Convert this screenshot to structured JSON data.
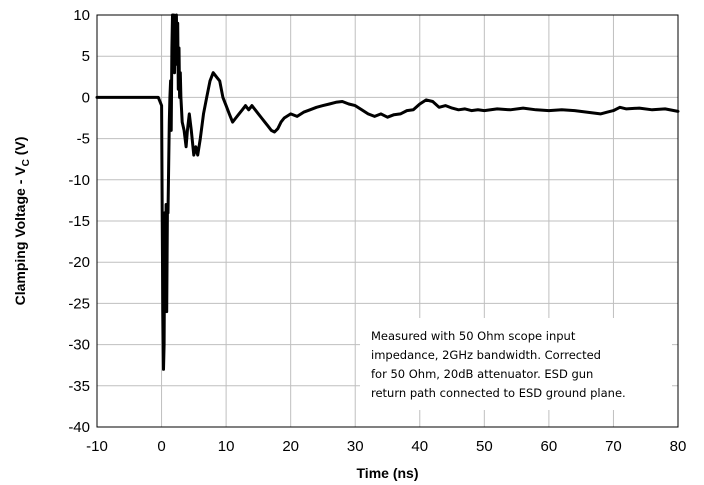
{
  "chart_data": {
    "type": "line",
    "xlabel": "Time (ns)",
    "ylabel_main": "Clamping Voltage - V",
    "ylabel_sub": "C",
    "ylabel_unit": " (V)",
    "xlim": [
      -10,
      80
    ],
    "ylim": [
      -40,
      10
    ],
    "xticks": [
      -10,
      0,
      10,
      20,
      30,
      40,
      50,
      60,
      70,
      80
    ],
    "yticks": [
      10,
      5,
      0,
      -5,
      -10,
      -15,
      -20,
      -25,
      -30,
      -35,
      -40
    ],
    "grid": true,
    "line_color": "#000000",
    "annotation": [
      "Measured with 50 Ohm scope input",
      "impedance, 2GHz bandwidth. Corrected",
      "for 50 Ohm, 20dB attenuator. ESD gun",
      "return path connected to ESD ground plane."
    ],
    "series": [
      {
        "x": [
          -10,
          -2,
          -0.5,
          0,
          0.1,
          0.2,
          0.3,
          0.4,
          0.5,
          0.6,
          0.7,
          0.8,
          0.9,
          1.0,
          1.1,
          1.2,
          1.3,
          1.4,
          1.5,
          1.6,
          1.7,
          1.8,
          1.9,
          2.0,
          2.1,
          2.2,
          2.3,
          2.4,
          2.5,
          2.6,
          2.7,
          2.8,
          2.9,
          3.0,
          3.2,
          3.5,
          3.8,
          4.0,
          4.3,
          4.6,
          5.0,
          5.3,
          5.6,
          6.0,
          6.5,
          7.0,
          7.5,
          8.0,
          8.5,
          9.0,
          9.5,
          10.0,
          10.5,
          11.0,
          11.5,
          12.0,
          12.5,
          13.0,
          13.5,
          14.0,
          14.5,
          15.0,
          15.5,
          16.0,
          16.5,
          17.0,
          17.5,
          18.0,
          18.5,
          19.0,
          20.0,
          21.0,
          22.0,
          23.0,
          24.0,
          25.0,
          26.0,
          27.0,
          28.0,
          29.0,
          30.0,
          31.0,
          32.0,
          33.0,
          34.0,
          35.0,
          36.0,
          37.0,
          38.0,
          39.0,
          40.0,
          41.0,
          42.0,
          43.0,
          44.0,
          45.0,
          46.0,
          47.0,
          48.0,
          49.0,
          50.0,
          52.0,
          54.0,
          56.0,
          58.0,
          60.0,
          62.0,
          64.0,
          66.0,
          68.0,
          69.0,
          70.0,
          71.0,
          72.0,
          74.0,
          76.0,
          78.0,
          80.0
        ],
        "y": [
          0,
          0,
          0,
          -1,
          -14,
          -26,
          -33,
          -30,
          -14,
          -25,
          -13,
          -26,
          -14,
          -14,
          -8,
          -3,
          0,
          2,
          -4,
          6,
          10,
          7,
          11,
          3,
          8,
          5,
          10,
          4,
          9,
          1,
          6,
          0,
          3,
          0,
          -3,
          -4,
          -6,
          -4,
          -2,
          -4,
          -7,
          -6,
          -7,
          -5,
          -2,
          0,
          2,
          3,
          2.5,
          2,
          0,
          -1,
          -2,
          -3,
          -2.5,
          -2,
          -1.5,
          -1,
          -1.5,
          -1,
          -1.5,
          -2,
          -2.5,
          -3,
          -3.5,
          -4,
          -4.2,
          -3.8,
          -3,
          -2.5,
          -2,
          -2.3,
          -1.8,
          -1.5,
          -1.2,
          -1,
          -0.8,
          -0.6,
          -0.5,
          -0.8,
          -1,
          -1.5,
          -2,
          -2.3,
          -2,
          -2.4,
          -2.1,
          -2.0,
          -1.6,
          -1.5,
          -0.8,
          -0.3,
          -0.5,
          -1.2,
          -1.0,
          -1.3,
          -1.5,
          -1.4,
          -1.6,
          -1.5,
          -1.6,
          -1.4,
          -1.5,
          -1.3,
          -1.5,
          -1.6,
          -1.5,
          -1.6,
          -1.8,
          -2.0,
          -1.8,
          -1.6,
          -1.2,
          -1.4,
          -1.3,
          -1.5,
          -1.4,
          -1.7
        ]
      }
    ]
  }
}
